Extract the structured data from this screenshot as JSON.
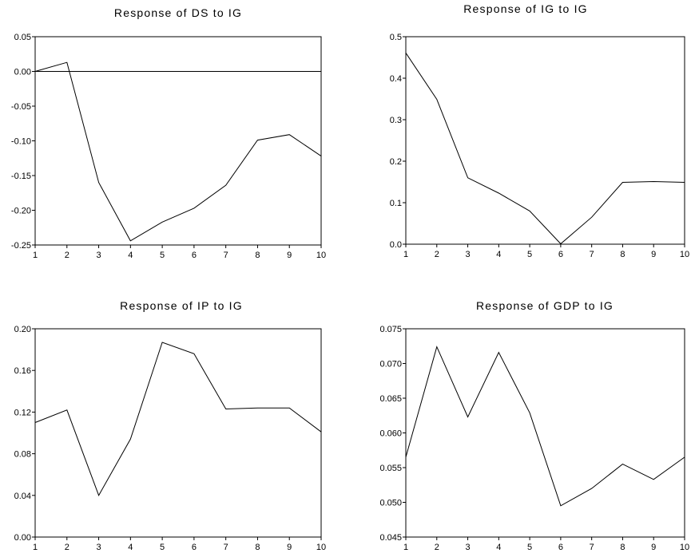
{
  "chart_data": [
    {
      "type": "line",
      "title": "Response of DS to IG",
      "x": [
        1,
        2,
        3,
        4,
        5,
        6,
        7,
        8,
        9,
        10
      ],
      "series": [
        {
          "values": [
            0.0,
            0.013,
            -0.16,
            -0.244,
            -0.217,
            -0.197,
            -0.164,
            -0.099,
            -0.091,
            -0.122
          ]
        }
      ],
      "ylim": [
        -0.25,
        0.05
      ],
      "yticks": [
        0.05,
        0.0,
        -0.05,
        -0.1,
        -0.15,
        -0.2,
        -0.25
      ],
      "ytick_labels": [
        "0.05",
        "0.00",
        "-0.05",
        "-0.10",
        "-0.15",
        "-0.20",
        "-0.25"
      ],
      "xticks": [
        "1",
        "2",
        "3",
        "4",
        "5",
        "6",
        "7",
        "8",
        "9",
        "10"
      ],
      "zero_line": true,
      "grid": false
    },
    {
      "type": "line",
      "title": "Response of IG to IG",
      "x": [
        1,
        2,
        3,
        4,
        5,
        6,
        7,
        8,
        9,
        10
      ],
      "series": [
        {
          "values": [
            0.461,
            0.349,
            0.16,
            0.123,
            0.08,
            0.001,
            0.065,
            0.149,
            0.151,
            0.149
          ]
        }
      ],
      "ylim": [
        0.0,
        0.5
      ],
      "yticks": [
        0.5,
        0.4,
        0.3,
        0.2,
        0.1,
        0.0
      ],
      "ytick_labels": [
        "0.5",
        "0.4",
        "0.3",
        "0.2",
        "0.1",
        "0.0"
      ],
      "xticks": [
        "1",
        "2",
        "3",
        "4",
        "5",
        "6",
        "7",
        "8",
        "9",
        "10"
      ],
      "zero_line": false,
      "grid": false
    },
    {
      "type": "line",
      "title": "Response of IP to IG",
      "x": [
        1,
        2,
        3,
        4,
        5,
        6,
        7,
        8,
        9,
        10
      ],
      "series": [
        {
          "values": [
            0.11,
            0.122,
            0.04,
            0.094,
            0.187,
            0.176,
            0.123,
            0.124,
            0.124,
            0.101
          ]
        }
      ],
      "ylim": [
        0.0,
        0.2
      ],
      "yticks": [
        0.2,
        0.16,
        0.12,
        0.08,
        0.04,
        0.0
      ],
      "ytick_labels": [
        "0.20",
        "0.16",
        "0.12",
        "0.08",
        "0.04",
        "0.00"
      ],
      "xticks": [
        "1",
        "2",
        "3",
        "4",
        "5",
        "6",
        "7",
        "8",
        "9",
        "10"
      ],
      "zero_line": false,
      "grid": false
    },
    {
      "type": "line",
      "title": "Response of GDP to IG",
      "x": [
        1,
        2,
        3,
        4,
        5,
        6,
        7,
        8,
        9,
        10
      ],
      "series": [
        {
          "values": [
            0.0565,
            0.0724,
            0.0623,
            0.0716,
            0.0629,
            0.0495,
            0.052,
            0.0555,
            0.0533,
            0.0565
          ]
        }
      ],
      "ylim": [
        0.045,
        0.075
      ],
      "yticks": [
        0.075,
        0.07,
        0.065,
        0.06,
        0.055,
        0.05,
        0.045
      ],
      "ytick_labels": [
        "0.075",
        "0.070",
        "0.065",
        "0.060",
        "0.055",
        "0.050",
        "0.045"
      ],
      "xticks": [
        "1",
        "2",
        "3",
        "4",
        "5",
        "6",
        "7",
        "8",
        "9",
        "10"
      ],
      "zero_line": false,
      "grid": false
    }
  ]
}
